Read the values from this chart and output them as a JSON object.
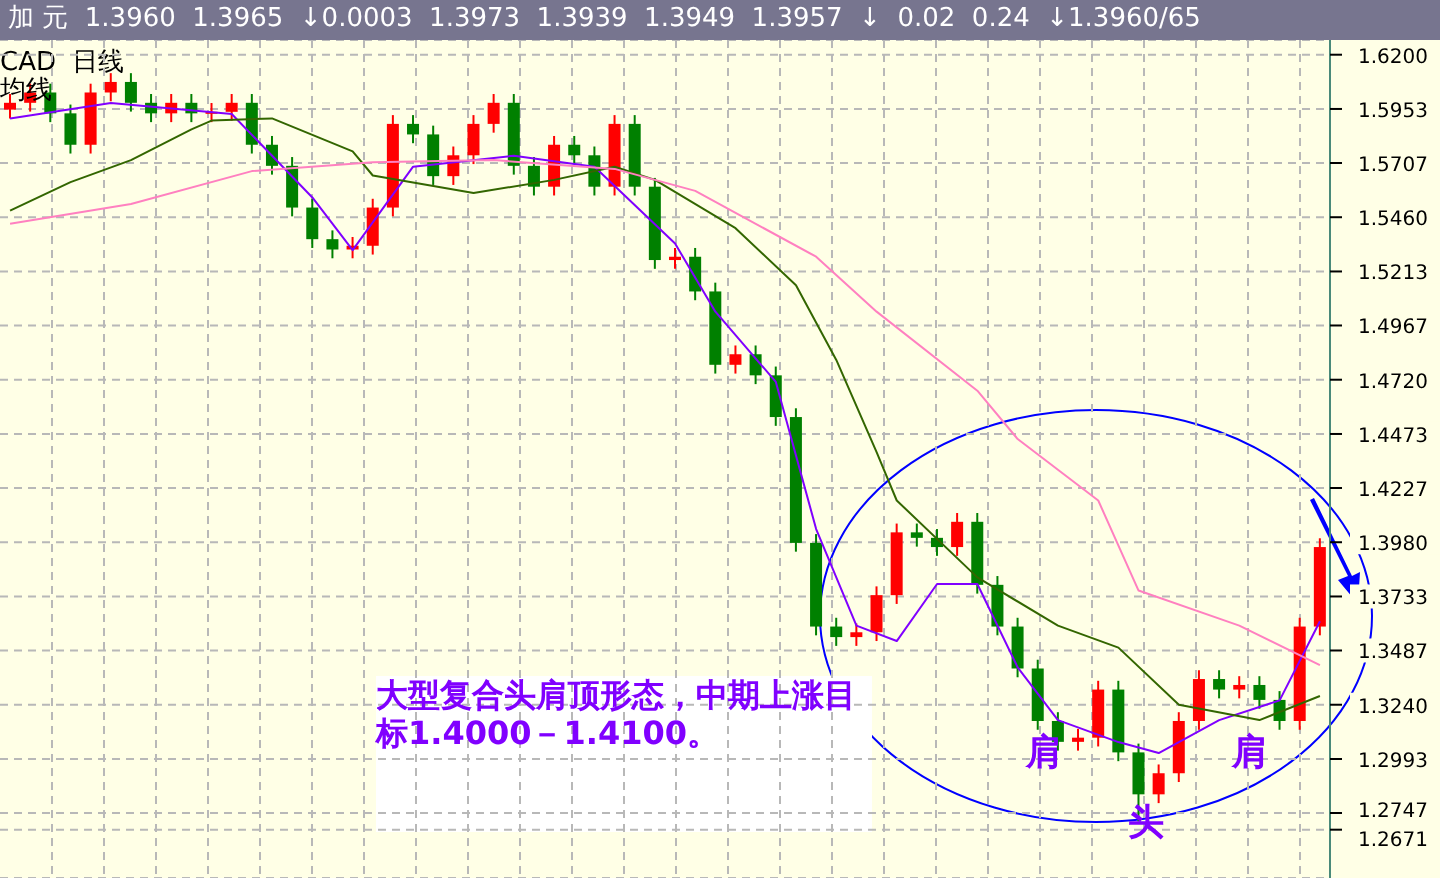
{
  "chart_data": {
    "type": "candlestick",
    "title": "加 元  1.3960  1.3965  ↓0.0003  1.3973  1.3939  1.3949  1.3957  ↓  0.02  0.24  ↓1.3960/65",
    "subtitle": "CAD  日线",
    "categories": [
      null,
      null,
      null,
      null,
      null,
      null,
      null,
      null,
      null,
      null,
      null,
      null,
      null,
      null,
      null,
      null,
      null,
      null,
      null,
      null,
      null,
      null,
      null,
      null,
      null,
      null,
      null,
      null,
      null,
      null,
      null,
      null,
      null,
      null,
      null,
      null,
      null,
      null,
      null,
      null,
      null,
      null,
      null,
      null,
      null,
      null,
      null,
      null,
      null,
      null,
      null,
      null,
      null,
      null,
      null,
      null,
      null,
      null,
      null,
      null,
      null,
      null,
      null,
      null,
      null,
      null
    ],
    "ohlc": [
      [
        1.595,
        1.6021,
        1.591,
        1.5981
      ],
      [
        1.5981,
        1.6068,
        1.5941,
        1.6028
      ],
      [
        1.6028,
        1.6068,
        1.5893,
        1.5933
      ],
      [
        1.5933,
        1.5973,
        1.575,
        1.579
      ],
      [
        1.579,
        1.6068,
        1.575,
        1.6028
      ],
      [
        1.6028,
        1.6116,
        1.5988,
        1.6076
      ],
      [
        1.6076,
        1.6116,
        1.5941,
        1.5981
      ],
      [
        1.5981,
        1.6021,
        1.5893,
        1.5933
      ],
      [
        1.5933,
        1.6021,
        1.5893,
        1.5981
      ],
      [
        1.5981,
        1.6021,
        1.5893,
        1.5933
      ],
      [
        1.5933,
        1.598,
        1.5893,
        1.594
      ],
      [
        1.594,
        1.6021,
        1.59,
        1.5981
      ],
      [
        1.5981,
        1.6021,
        1.575,
        1.579
      ],
      [
        1.579,
        1.583,
        1.5654,
        1.5694
      ],
      [
        1.5694,
        1.5734,
        1.5464,
        1.5504
      ],
      [
        1.5504,
        1.5544,
        1.532,
        1.536
      ],
      [
        1.536,
        1.54,
        1.5273,
        1.5313
      ],
      [
        1.5313,
        1.537,
        1.5273,
        1.533
      ],
      [
        1.533,
        1.5544,
        1.529,
        1.5504
      ],
      [
        1.5504,
        1.5925,
        1.5464,
        1.5885
      ],
      [
        1.5885,
        1.5925,
        1.5797,
        1.5837
      ],
      [
        1.5837,
        1.5877,
        1.5607,
        1.5647
      ],
      [
        1.5647,
        1.5782,
        1.5607,
        1.5742
      ],
      [
        1.5742,
        1.5925,
        1.5702,
        1.5885
      ],
      [
        1.5885,
        1.6021,
        1.5845,
        1.5981
      ],
      [
        1.5981,
        1.6021,
        1.5654,
        1.5694
      ],
      [
        1.5694,
        1.5734,
        1.5559,
        1.5599
      ],
      [
        1.5599,
        1.583,
        1.5559,
        1.579
      ],
      [
        1.579,
        1.583,
        1.5702,
        1.5742
      ],
      [
        1.5742,
        1.5782,
        1.5559,
        1.5599
      ],
      [
        1.5599,
        1.5925,
        1.5559,
        1.5885
      ],
      [
        1.5885,
        1.5925,
        1.5559,
        1.5599
      ],
      [
        1.5599,
        1.5639,
        1.5225,
        1.5265
      ],
      [
        1.5265,
        1.532,
        1.5225,
        1.528
      ],
      [
        1.528,
        1.532,
        1.5082,
        1.5122
      ],
      [
        1.5122,
        1.5162,
        1.4748,
        1.4788
      ],
      [
        1.4788,
        1.4876,
        1.4748,
        1.4836
      ],
      [
        1.4836,
        1.4876,
        1.47,
        1.474
      ],
      [
        1.474,
        1.478,
        1.451,
        1.455
      ],
      [
        1.455,
        1.459,
        1.3937,
        1.3977
      ],
      [
        1.3977,
        1.4017,
        1.3556,
        1.3596
      ],
      [
        1.3596,
        1.3636,
        1.3508,
        1.3548
      ],
      [
        1.3548,
        1.361,
        1.3508,
        1.357
      ],
      [
        1.357,
        1.3779,
        1.353,
        1.3739
      ],
      [
        1.3739,
        1.4065,
        1.3699,
        1.4025
      ],
      [
        1.4025,
        1.4065,
        1.396,
        1.4
      ],
      [
        1.4,
        1.404,
        1.3918,
        1.3958
      ],
      [
        1.3958,
        1.4113,
        1.3918,
        1.4073
      ],
      [
        1.4073,
        1.4113,
        1.3746,
        1.3786
      ],
      [
        1.3786,
        1.3826,
        1.3556,
        1.3596
      ],
      [
        1.3596,
        1.3636,
        1.3365,
        1.3405
      ],
      [
        1.3405,
        1.3445,
        1.3126,
        1.3166
      ],
      [
        1.3166,
        1.3206,
        1.3031,
        1.3071
      ],
      [
        1.3071,
        1.313,
        1.3031,
        1.309
      ],
      [
        1.309,
        1.3349,
        1.305,
        1.3309
      ],
      [
        1.3309,
        1.3349,
        1.2983,
        1.3023
      ],
      [
        1.3023,
        1.3063,
        1.2708,
        1.2832
      ],
      [
        1.2832,
        1.2968,
        1.2792,
        1.2928
      ],
      [
        1.2928,
        1.3206,
        1.2888,
        1.3166
      ],
      [
        1.3166,
        1.3397,
        1.3126,
        1.3357
      ],
      [
        1.3357,
        1.3397,
        1.3269,
        1.3309
      ],
      [
        1.3309,
        1.337,
        1.3269,
        1.333
      ],
      [
        1.333,
        1.337,
        1.3222,
        1.3262
      ],
      [
        1.3262,
        1.3302,
        1.3126,
        1.3166
      ],
      [
        1.3166,
        1.3636,
        1.3126,
        1.3596
      ],
      [
        1.3596,
        1.3998,
        1.3556,
        1.3958
      ]
    ],
    "colors": [
      "#ff0000",
      "#ff0000",
      "#008000",
      "#008000",
      "#ff0000",
      "#ff0000",
      "#008000",
      "#008000",
      "#ff0000",
      "#008000",
      "#ff0000",
      "#ff0000",
      "#008000",
      "#008000",
      "#008000",
      "#008000",
      "#008000",
      "#ff0000",
      "#ff0000",
      "#ff0000",
      "#008000",
      "#008000",
      "#ff0000",
      "#ff0000",
      "#ff0000",
      "#008000",
      "#008000",
      "#ff0000",
      "#008000",
      "#008000",
      "#ff0000",
      "#008000",
      "#008000",
      "#ff0000",
      "#008000",
      "#008000",
      "#ff0000",
      "#008000",
      "#008000",
      "#008000",
      "#008000",
      "#008000",
      "#ff0000",
      "#ff0000",
      "#ff0000",
      "#008000",
      "#008000",
      "#ff0000",
      "#008000",
      "#008000",
      "#008000",
      "#008000",
      "#008000",
      "#ff0000",
      "#ff0000",
      "#008000",
      "#008000",
      "#ff0000",
      "#ff0000",
      "#ff0000",
      "#008000",
      "#ff0000",
      "#008000",
      "#008000",
      "#ff0000",
      "#ff0000"
    ],
    "series": [
      {
        "type": "line",
        "color": "#8000ff",
        "values": [
          1.591,
          null,
          null,
          null,
          null,
          1.598,
          null,
          null,
          null,
          null,
          null,
          1.593,
          null,
          null,
          null,
          1.555,
          null,
          1.531,
          null,
          null,
          1.569,
          null,
          null,
          null,
          null,
          1.574,
          null,
          null,
          null,
          1.569,
          null,
          null,
          null,
          1.534,
          null,
          1.503,
          null,
          null,
          1.471,
          null,
          1.404,
          null,
          1.36,
          null,
          1.353,
          null,
          1.379,
          null,
          1.379,
          null,
          1.341,
          null,
          1.317,
          null,
          null,
          1.307,
          null,
          1.302,
          null,
          null,
          1.317,
          null,
          null,
          1.326,
          null,
          1.362
        ]
      },
      {
        "type": "line",
        "color": "#336600",
        "values": [
          1.549,
          null,
          null,
          1.562,
          null,
          null,
          1.572,
          null,
          null,
          1.586,
          1.59,
          null,
          null,
          1.591,
          null,
          null,
          null,
          1.576,
          1.565,
          null,
          null,
          null,
          null,
          1.557,
          null,
          null,
          null,
          1.563,
          null,
          null,
          1.569,
          null,
          1.563,
          null,
          null,
          null,
          1.541,
          null,
          null,
          1.515,
          null,
          1.481,
          null,
          1.439,
          1.417,
          null,
          null,
          null,
          1.382,
          null,
          null,
          null,
          1.36,
          null,
          null,
          1.35,
          null,
          null,
          1.324,
          null,
          null,
          null,
          1.317,
          null,
          null,
          1.328
        ]
      },
      {
        "type": "line",
        "color": "#ff80c0",
        "values": [
          1.543,
          null,
          null,
          null,
          null,
          null,
          1.552,
          null,
          null,
          null,
          null,
          null,
          1.567,
          null,
          null,
          null,
          null,
          null,
          1.571,
          null,
          null,
          null,
          null,
          null,
          1.572,
          null,
          null,
          null,
          null,
          null,
          1.568,
          null,
          null,
          null,
          1.558,
          null,
          null,
          null,
          null,
          null,
          1.528,
          null,
          null,
          1.503,
          null,
          null,
          null,
          null,
          1.467,
          null,
          1.445,
          null,
          null,
          null,
          1.417,
          null,
          1.376,
          null,
          null,
          null,
          null,
          1.36,
          null,
          null,
          null,
          1.342
        ]
      }
    ],
    "ylim": [
      1.2451,
      1.6267
    ],
    "yticks": [
      {
        "value": 1.62,
        "label": "1.6200"
      },
      {
        "value": 1.5953,
        "label": "1.5953"
      },
      {
        "value": 1.5707,
        "label": "1.5707"
      },
      {
        "value": 1.546,
        "label": "1.5460"
      },
      {
        "value": 1.5213,
        "label": "1.5213"
      },
      {
        "value": 1.4967,
        "label": "1.4967"
      },
      {
        "value": 1.472,
        "label": "1.4720"
      },
      {
        "value": 1.4473,
        "label": "1.4473"
      },
      {
        "value": 1.4227,
        "label": "1.4227"
      },
      {
        "value": 1.398,
        "label": "1.3980"
      },
      {
        "value": 1.3733,
        "label": "1.3733"
      },
      {
        "value": 1.3487,
        "label": "1.3487"
      },
      {
        "value": 1.324,
        "label": "1.3240"
      },
      {
        "value": 1.2993,
        "label": "1.2993"
      },
      {
        "value": 1.2747,
        "label": "1.2747"
      },
      {
        "value": 1.2671,
        "label": "1.2671"
      }
    ],
    "tick_labels": "y",
    "grid": true,
    "legend": false,
    "annotations": [
      "均线",
      "大型复合头肩顶形态，中期上涨目标1.4000－1.4100。",
      "肩",
      "头",
      "肩"
    ]
  }
}
